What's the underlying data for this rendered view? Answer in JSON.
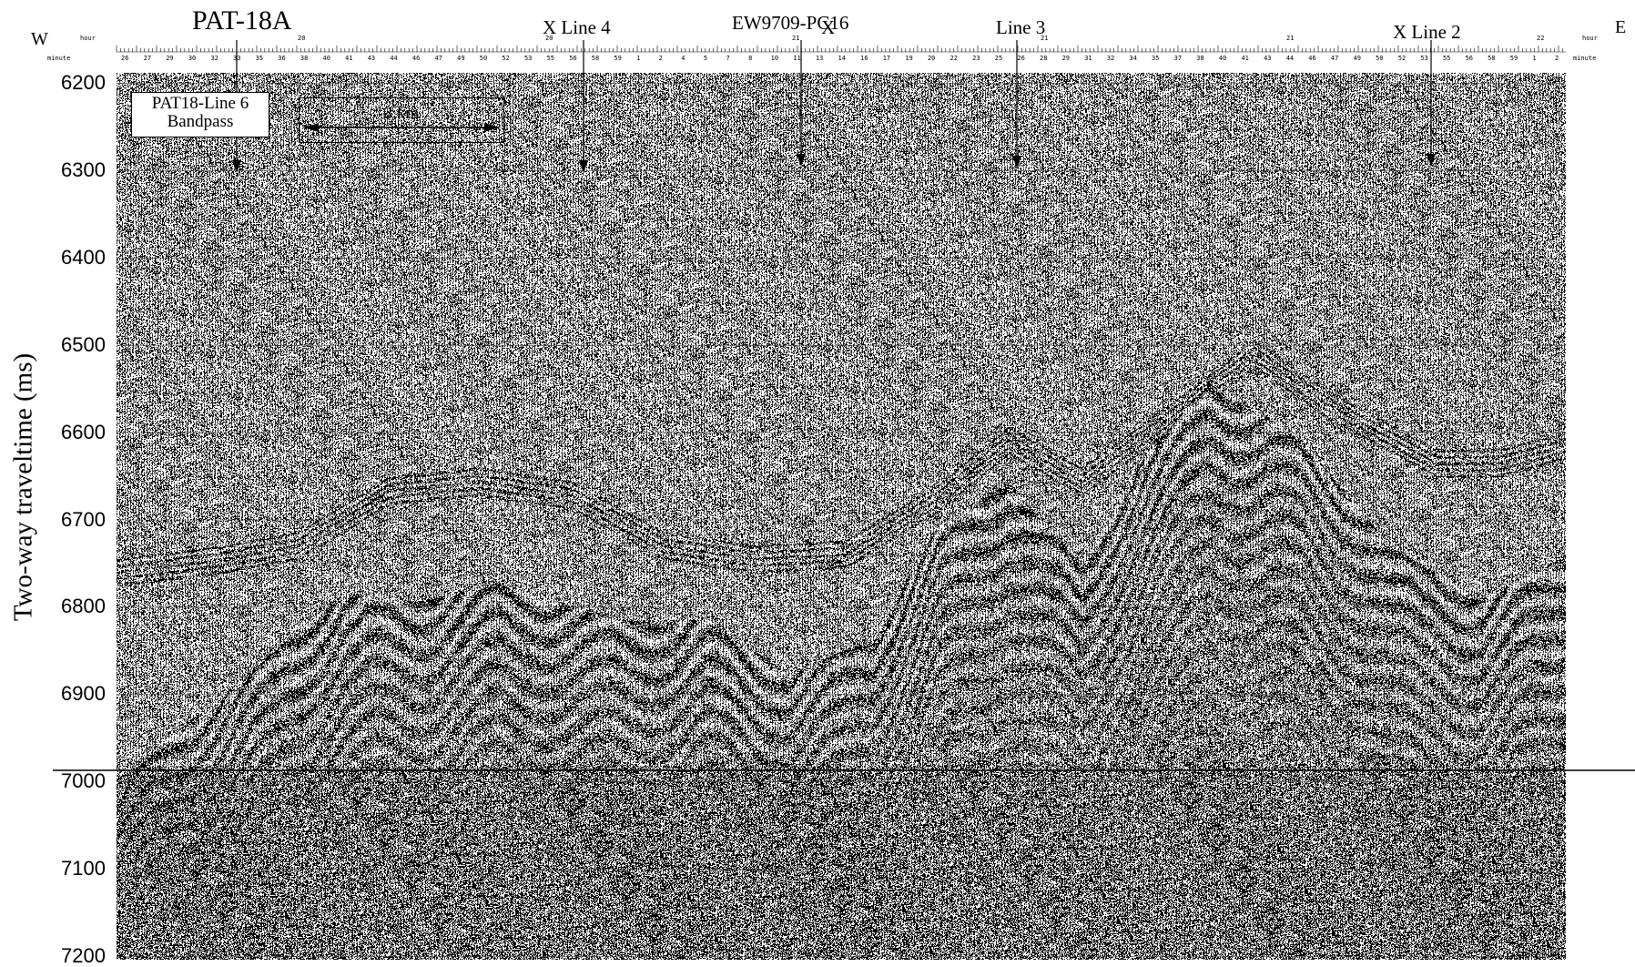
{
  "figure": {
    "site_label": "PAT-18A",
    "west_label": "W",
    "east_label": "E",
    "y_axis_label": "Two-way traveltime (ms)",
    "y_ticks": [
      "6200",
      "6300",
      "6400",
      "6500",
      "6600",
      "6700",
      "6800",
      "6900",
      "7000",
      "7100",
      "7200"
    ],
    "line_box": {
      "line1": "PAT18-Line 6",
      "line2": "Bandpass"
    },
    "scale_bar": {
      "label": "3 km"
    },
    "crossing_labels": [
      "X Line 4",
      "EW9709-PC16",
      "X",
      "Line 3",
      "X Line 2"
    ],
    "time_axis": {
      "hour_label": "hour",
      "minute_label": "minute",
      "hour_ticks": [
        "20",
        "20",
        "21",
        "21",
        "21",
        "22"
      ],
      "minute_ticks": [
        "26",
        "27",
        "29",
        "30",
        "32",
        "33",
        "35",
        "36",
        "38",
        "40",
        "41",
        "43",
        "44",
        "46",
        "47",
        "49",
        "50",
        "52",
        "53",
        "55",
        "56",
        "58",
        "59",
        "1",
        "2",
        "4",
        "5",
        "7",
        "8",
        "10",
        "11",
        "13",
        "14",
        "16",
        "17",
        "19",
        "20",
        "22",
        "23",
        "25",
        "26",
        "28",
        "29",
        "31",
        "32",
        "34",
        "35",
        "37",
        "38",
        "40",
        "41",
        "43",
        "44",
        "46",
        "47",
        "49",
        "50",
        "52",
        "53",
        "55",
        "56",
        "58",
        "59",
        "1",
        "2"
      ]
    }
  },
  "colors": {
    "ink": "#000000",
    "paper": "#ffffff"
  }
}
